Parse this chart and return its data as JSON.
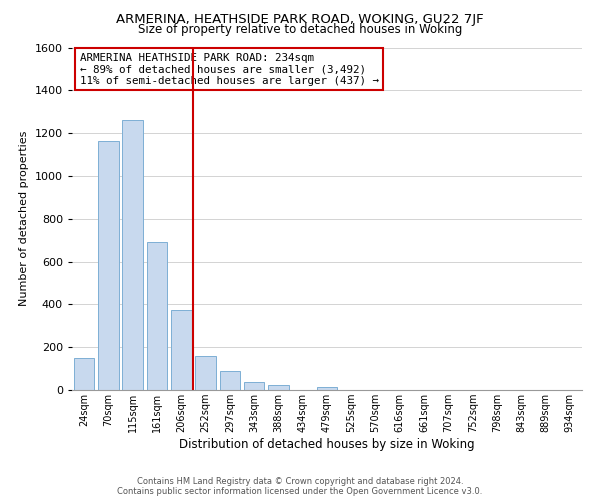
{
  "title": "ARMERINA, HEATHSIDE PARK ROAD, WOKING, GU22 7JF",
  "subtitle": "Size of property relative to detached houses in Woking",
  "xlabel": "Distribution of detached houses by size in Woking",
  "ylabel": "Number of detached properties",
  "bar_labels": [
    "24sqm",
    "70sqm",
    "115sqm",
    "161sqm",
    "206sqm",
    "252sqm",
    "297sqm",
    "343sqm",
    "388sqm",
    "434sqm",
    "479sqm",
    "525sqm",
    "570sqm",
    "616sqm",
    "661sqm",
    "707sqm",
    "752sqm",
    "798sqm",
    "843sqm",
    "889sqm",
    "934sqm"
  ],
  "bar_values": [
    148,
    1165,
    1260,
    690,
    375,
    160,
    90,
    38,
    22,
    0,
    15,
    0,
    0,
    0,
    0,
    0,
    0,
    0,
    0,
    0,
    0
  ],
  "bar_color": "#c8d9ee",
  "bar_edge_color": "#7dafd4",
  "vline_index": 4.5,
  "vline_color": "#cc0000",
  "ylim": [
    0,
    1600
  ],
  "yticks": [
    0,
    200,
    400,
    600,
    800,
    1000,
    1200,
    1400,
    1600
  ],
  "annotation_title": "ARMERINA HEATHSIDE PARK ROAD: 234sqm",
  "annotation_line1": "← 89% of detached houses are smaller (3,492)",
  "annotation_line2": "11% of semi-detached houses are larger (437) →",
  "footer_line1": "Contains HM Land Registry data © Crown copyright and database right 2024.",
  "footer_line2": "Contains public sector information licensed under the Open Government Licence v3.0.",
  "background_color": "#ffffff",
  "grid_color": "#cccccc",
  "ann_border_color": "#cc0000"
}
